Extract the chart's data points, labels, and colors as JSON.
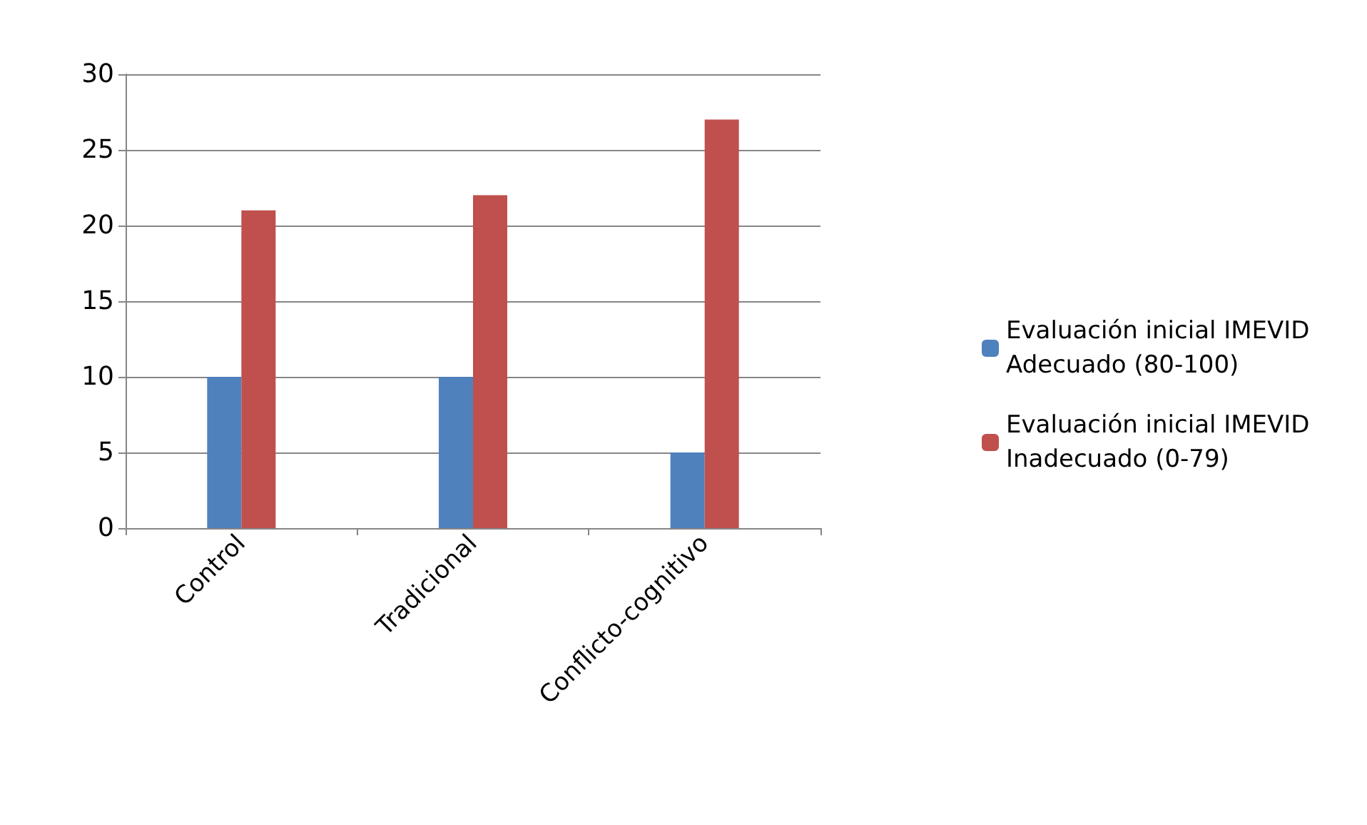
{
  "chart_data": {
    "type": "bar",
    "categories": [
      "Control",
      "Tradicional",
      "Conflicto-cognitivo"
    ],
    "series": [
      {
        "name": "Evaluación inicial IMEVID Adecuado (80-100)",
        "color": "#4f81bd",
        "values": [
          10,
          10,
          5
        ]
      },
      {
        "name": "Evaluación inicial IMEVID Inadecuado (0-79)",
        "color": "#c0504d",
        "values": [
          21,
          22,
          27
        ]
      }
    ],
    "ylim": [
      0,
      30
    ],
    "yticks": [
      0,
      5,
      10,
      15,
      20,
      25,
      30
    ],
    "grid": "y",
    "legend": "right"
  }
}
